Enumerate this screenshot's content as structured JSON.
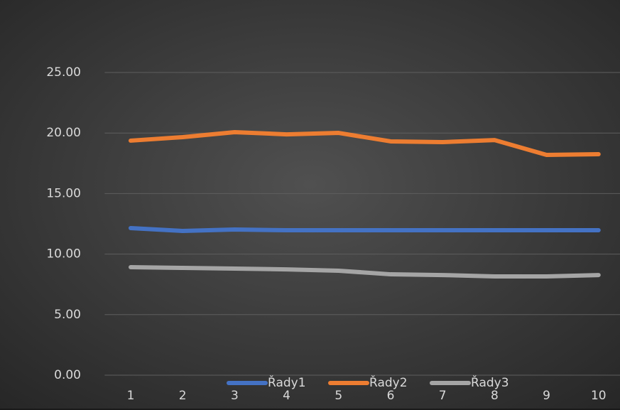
{
  "chart_data": {
    "type": "line",
    "categories": [
      "1",
      "2",
      "3",
      "4",
      "5",
      "6",
      "7",
      "8",
      "9",
      "10"
    ],
    "series": [
      {
        "name": "Řady1",
        "color": "#4472c4",
        "values": [
          12.15,
          11.91,
          12.03,
          11.97,
          11.97,
          11.97,
          11.97,
          11.97,
          11.97,
          11.97
        ]
      },
      {
        "name": "Řady2",
        "color": "#ed7d31",
        "values": [
          19.37,
          19.66,
          20.07,
          19.89,
          20.01,
          19.31,
          19.25,
          19.42,
          18.19,
          18.25
        ]
      },
      {
        "name": "Řady3",
        "color": "#a5a5a5",
        "values": [
          8.92,
          8.86,
          8.8,
          8.74,
          8.63,
          8.33,
          8.27,
          8.16,
          8.16,
          8.27
        ]
      }
    ],
    "ylim": [
      0,
      25
    ],
    "yticks": [
      {
        "value": 0,
        "label": "0.00"
      },
      {
        "value": 5,
        "label": "5.00"
      },
      {
        "value": 10,
        "label": "10.00"
      },
      {
        "value": 15,
        "label": "15.00"
      },
      {
        "value": 20,
        "label": "20.00"
      },
      {
        "value": 25,
        "label": "25.00"
      }
    ],
    "grid": true,
    "legend": "bottom"
  }
}
